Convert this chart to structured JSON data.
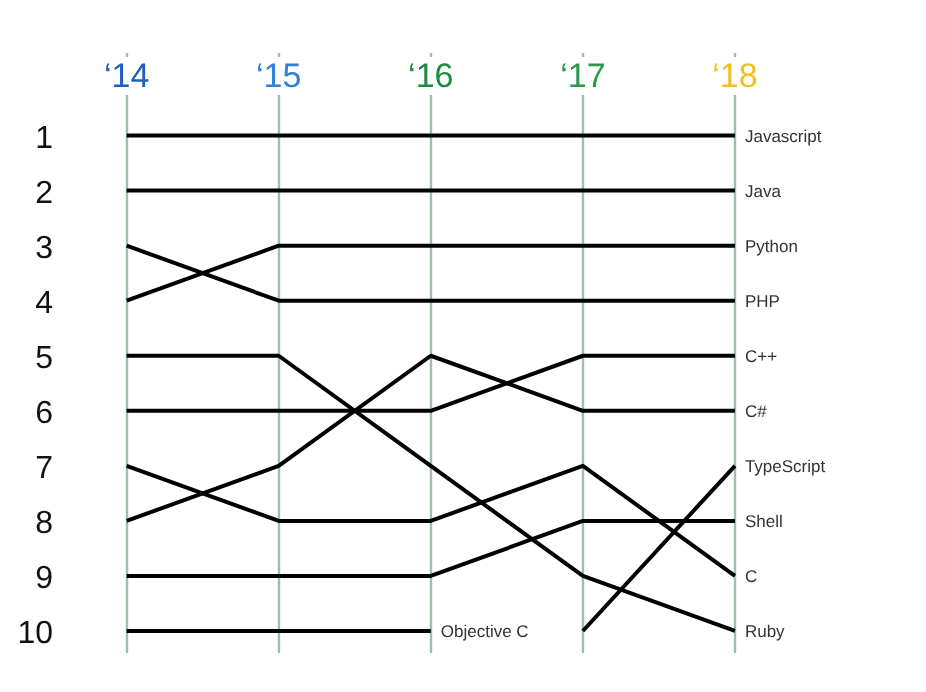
{
  "chart_data": {
    "type": "line",
    "grid": "x",
    "marker": "none",
    "line_style": "solid",
    "categories": [
      "‘14",
      "‘15",
      "‘16",
      "‘17",
      "‘18"
    ],
    "ylim": [
      10.4,
      -0.5
    ],
    "yticks": [
      1,
      2,
      3,
      4,
      5,
      6,
      7,
      8,
      9,
      10
    ],
    "series": [
      {
        "name": "Javascript",
        "color": "#000000",
        "values": [
          1,
          1,
          1,
          1,
          1
        ]
      },
      {
        "name": "Java",
        "color": "#000000",
        "values": [
          2,
          2,
          2,
          2,
          2
        ]
      },
      {
        "name": "Python",
        "color": "#000000",
        "values": [
          4,
          3,
          3,
          3,
          3
        ]
      },
      {
        "name": "PHP",
        "color": "#000000",
        "values": [
          3,
          4,
          4,
          4,
          4
        ]
      },
      {
        "name": "C++",
        "color": "#000000",
        "values": [
          6,
          6,
          6,
          5,
          5
        ]
      },
      {
        "name": "C#",
        "color": "#000000",
        "values": [
          8,
          7,
          5,
          6,
          6
        ]
      },
      {
        "name": "TypeScript",
        "color": "#000000",
        "x": [
          "‘17",
          "‘18"
        ],
        "values": [
          10,
          7
        ]
      },
      {
        "name": "Shell",
        "color": "#000000",
        "values": [
          9,
          9,
          9,
          8,
          8
        ]
      },
      {
        "name": "C",
        "color": "#000000",
        "values": [
          7,
          8,
          8,
          7,
          9
        ]
      },
      {
        "name": "Ruby",
        "color": "#000000",
        "values": [
          5,
          5,
          7,
          9,
          10
        ]
      },
      {
        "name": "Objective C",
        "color": "#000000",
        "x": [
          "‘14",
          "‘15",
          "‘16"
        ],
        "values": [
          10,
          10,
          10
        ]
      }
    ]
  }
}
